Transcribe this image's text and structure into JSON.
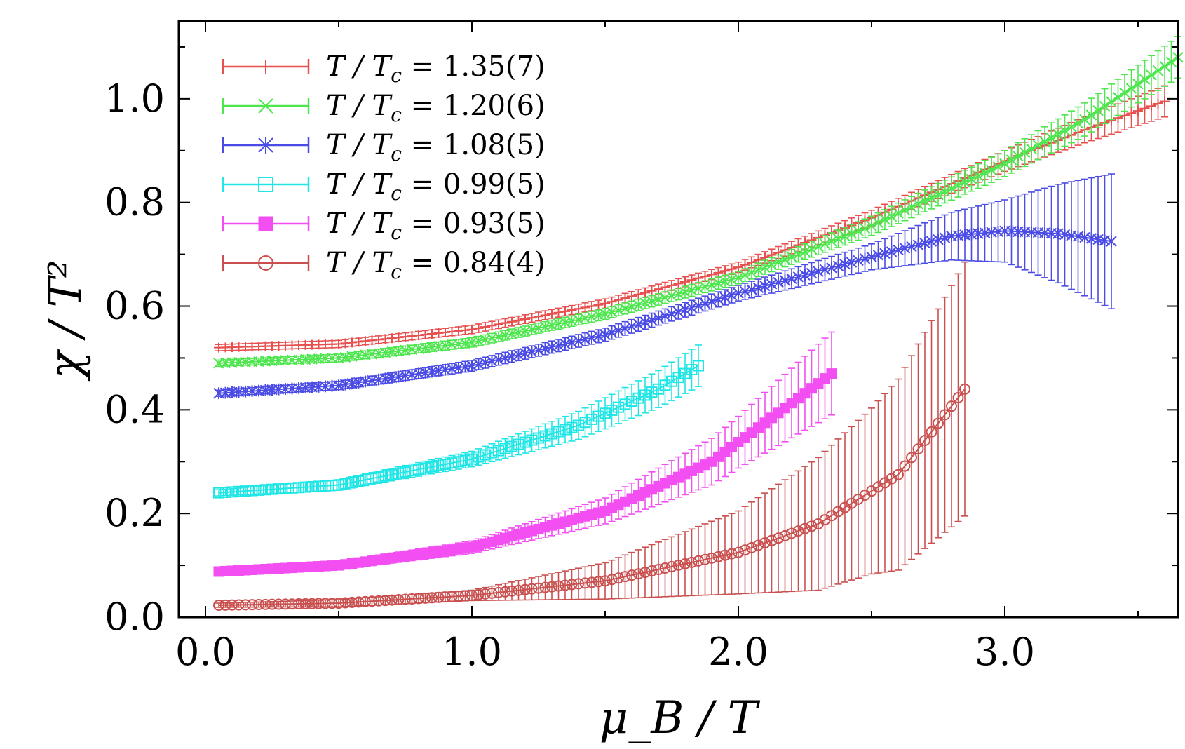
{
  "chart_data": {
    "type": "scatter",
    "xlabel": "μ_B / T",
    "ylabel": "χ / T²",
    "xlim": [
      -0.1,
      3.65
    ],
    "ylim": [
      0.0,
      1.15
    ],
    "x_ticks": [
      0.0,
      1.0,
      2.0,
      3.0
    ],
    "x_tick_labels": [
      "0.0",
      "1.0",
      "2.0",
      "3.0"
    ],
    "y_ticks": [
      0.0,
      0.2,
      0.4,
      0.6,
      0.8,
      1.0
    ],
    "y_tick_labels": [
      "0.0",
      "0.2",
      "0.4",
      "0.6",
      "0.8",
      "1.0"
    ],
    "grid": false,
    "legend_position": "top-left",
    "series": [
      {
        "name": "T / T_c = 1.35(7)",
        "legend_text": "T / T",
        "legend_sub": "c",
        "legend_value": " = 1.35(7)",
        "color": "#e8504f",
        "marker": "plus",
        "x_range": [
          0.05,
          3.6
        ],
        "points": [
          [
            0.05,
            0.52
          ],
          [
            0.5,
            0.527
          ],
          [
            1.0,
            0.555
          ],
          [
            1.5,
            0.605
          ],
          [
            2.0,
            0.675
          ],
          [
            2.5,
            0.77
          ],
          [
            3.0,
            0.88
          ],
          [
            3.3,
            0.94
          ],
          [
            3.6,
            0.995
          ]
        ],
        "err": [
          [
            0.05,
            0.006
          ],
          [
            2.0,
            0.01
          ],
          [
            3.0,
            0.02
          ],
          [
            3.6,
            0.03
          ]
        ]
      },
      {
        "name": "T / T_c = 1.20(6)",
        "legend_text": "T / T",
        "legend_sub": "c",
        "legend_value": " = 1.20(6)",
        "color": "#4ee64e",
        "marker": "x",
        "x_range": [
          0.05,
          3.65
        ],
        "points": [
          [
            0.05,
            0.49
          ],
          [
            0.5,
            0.5
          ],
          [
            1.0,
            0.53
          ],
          [
            1.5,
            0.585
          ],
          [
            2.0,
            0.655
          ],
          [
            2.5,
            0.755
          ],
          [
            3.0,
            0.875
          ],
          [
            3.3,
            0.96
          ],
          [
            3.65,
            1.08
          ]
        ],
        "err": [
          [
            0.05,
            0.006
          ],
          [
            2.0,
            0.012
          ],
          [
            3.0,
            0.025
          ],
          [
            3.65,
            0.04
          ]
        ]
      },
      {
        "name": "T / T_c = 1.08(5)",
        "legend_text": "T / T",
        "legend_sub": "c",
        "legend_value": " = 1.08(5)",
        "color": "#4b4be6",
        "marker": "asterisk",
        "x_range": [
          0.05,
          3.4
        ],
        "points": [
          [
            0.05,
            0.432
          ],
          [
            0.5,
            0.447
          ],
          [
            1.0,
            0.485
          ],
          [
            1.5,
            0.545
          ],
          [
            2.0,
            0.625
          ],
          [
            2.5,
            0.695
          ],
          [
            2.8,
            0.735
          ],
          [
            3.0,
            0.745
          ],
          [
            3.2,
            0.74
          ],
          [
            3.4,
            0.725
          ]
        ],
        "err": [
          [
            0.05,
            0.006
          ],
          [
            2.0,
            0.015
          ],
          [
            2.5,
            0.025
          ],
          [
            3.0,
            0.06
          ],
          [
            3.4,
            0.13
          ]
        ]
      },
      {
        "name": "T / T_c = 0.99(5)",
        "legend_text": "T / T",
        "legend_sub": "c",
        "legend_value": " = 0.99(5)",
        "color": "#22e6e6",
        "marker": "square-open",
        "x_range": [
          0.05,
          1.85
        ],
        "points": [
          [
            0.05,
            0.24
          ],
          [
            0.5,
            0.255
          ],
          [
            1.0,
            0.305
          ],
          [
            1.4,
            0.37
          ],
          [
            1.7,
            0.44
          ],
          [
            1.85,
            0.485
          ]
        ],
        "err": [
          [
            0.05,
            0.006
          ],
          [
            1.0,
            0.015
          ],
          [
            1.5,
            0.03
          ],
          [
            1.85,
            0.04
          ]
        ]
      },
      {
        "name": "T / T_c = 0.93(5)",
        "legend_text": "T / T",
        "legend_sub": "c",
        "legend_value": " = 0.93(5)",
        "color": "#f24ef2",
        "marker": "square-filled",
        "x_range": [
          0.05,
          2.35
        ],
        "points": [
          [
            0.05,
            0.088
          ],
          [
            0.5,
            0.1
          ],
          [
            1.0,
            0.135
          ],
          [
            1.5,
            0.205
          ],
          [
            1.9,
            0.3
          ],
          [
            2.1,
            0.375
          ],
          [
            2.35,
            0.47
          ]
        ],
        "err": [
          [
            0.05,
            0.005
          ],
          [
            1.0,
            0.012
          ],
          [
            1.5,
            0.025
          ],
          [
            2.0,
            0.05
          ],
          [
            2.35,
            0.08
          ]
        ]
      },
      {
        "name": "T / T_c = 0.84(4)",
        "legend_text": "T / T",
        "legend_sub": "c",
        "legend_value": " = 0.84(4)",
        "color": "#c9504f",
        "marker": "circle-open",
        "x_range": [
          0.05,
          2.85
        ],
        "points": [
          [
            0.05,
            0.023
          ],
          [
            0.5,
            0.027
          ],
          [
            1.0,
            0.042
          ],
          [
            1.5,
            0.07
          ],
          [
            2.0,
            0.125
          ],
          [
            2.3,
            0.18
          ],
          [
            2.6,
            0.275
          ],
          [
            2.85,
            0.44
          ]
        ],
        "err": [
          [
            0.05,
            0.004
          ],
          [
            1.0,
            0.01
          ],
          [
            1.5,
            0.035
          ],
          [
            2.0,
            0.08
          ],
          [
            2.5,
            0.16
          ],
          [
            2.85,
            0.245
          ]
        ]
      }
    ]
  }
}
